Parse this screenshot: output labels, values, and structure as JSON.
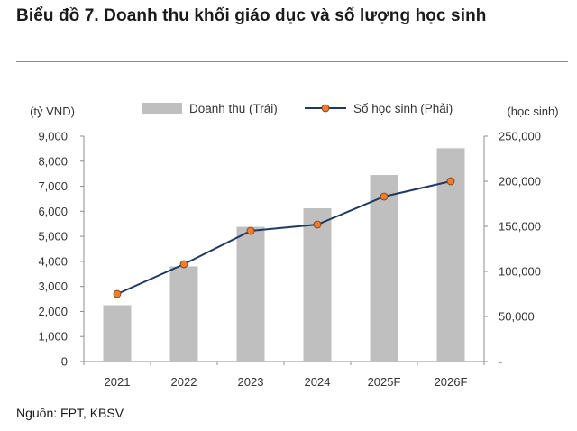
{
  "title": "Biểu đồ 7.  Doanh thu khối giáo dục và số lượng học sinh",
  "source": "Nguồn: FPT, KBSV",
  "chart_data": {
    "type": "bar",
    "categories": [
      "2021",
      "2022",
      "2023",
      "2024",
      "2025F",
      "2026F"
    ],
    "series": [
      {
        "name": "Doanh thu (Trái)",
        "type": "bar",
        "axis": "left",
        "values": [
          2250,
          3800,
          5380,
          6120,
          7450,
          8520
        ],
        "color": "#bfbfbf"
      },
      {
        "name": "Số học sinh (Phải)",
        "type": "line",
        "axis": "right",
        "values": [
          75000,
          108000,
          145000,
          152000,
          183000,
          200000
        ],
        "color": "#1f3864",
        "marker_color": "#ed7d31"
      }
    ],
    "left_axis": {
      "unit_label": "(tỷ VND)",
      "min": 0,
      "max": 9000,
      "ticks": [
        0,
        1000,
        2000,
        3000,
        4000,
        5000,
        6000,
        7000,
        8000,
        9000
      ],
      "tick_labels": [
        "0",
        "1,000",
        "2,000",
        "3,000",
        "4,000",
        "5,000",
        "6,000",
        "7,000",
        "8,000",
        "9,000"
      ]
    },
    "right_axis": {
      "unit_label": "(học sinh)",
      "min": 0,
      "max": 250000,
      "ticks": [
        0,
        50000,
        100000,
        150000,
        200000,
        250000
      ],
      "tick_labels": [
        "-",
        "50,000",
        "100,000",
        "150,000",
        "200,000",
        "250,000"
      ]
    },
    "legend_position": "top",
    "grid": false
  }
}
